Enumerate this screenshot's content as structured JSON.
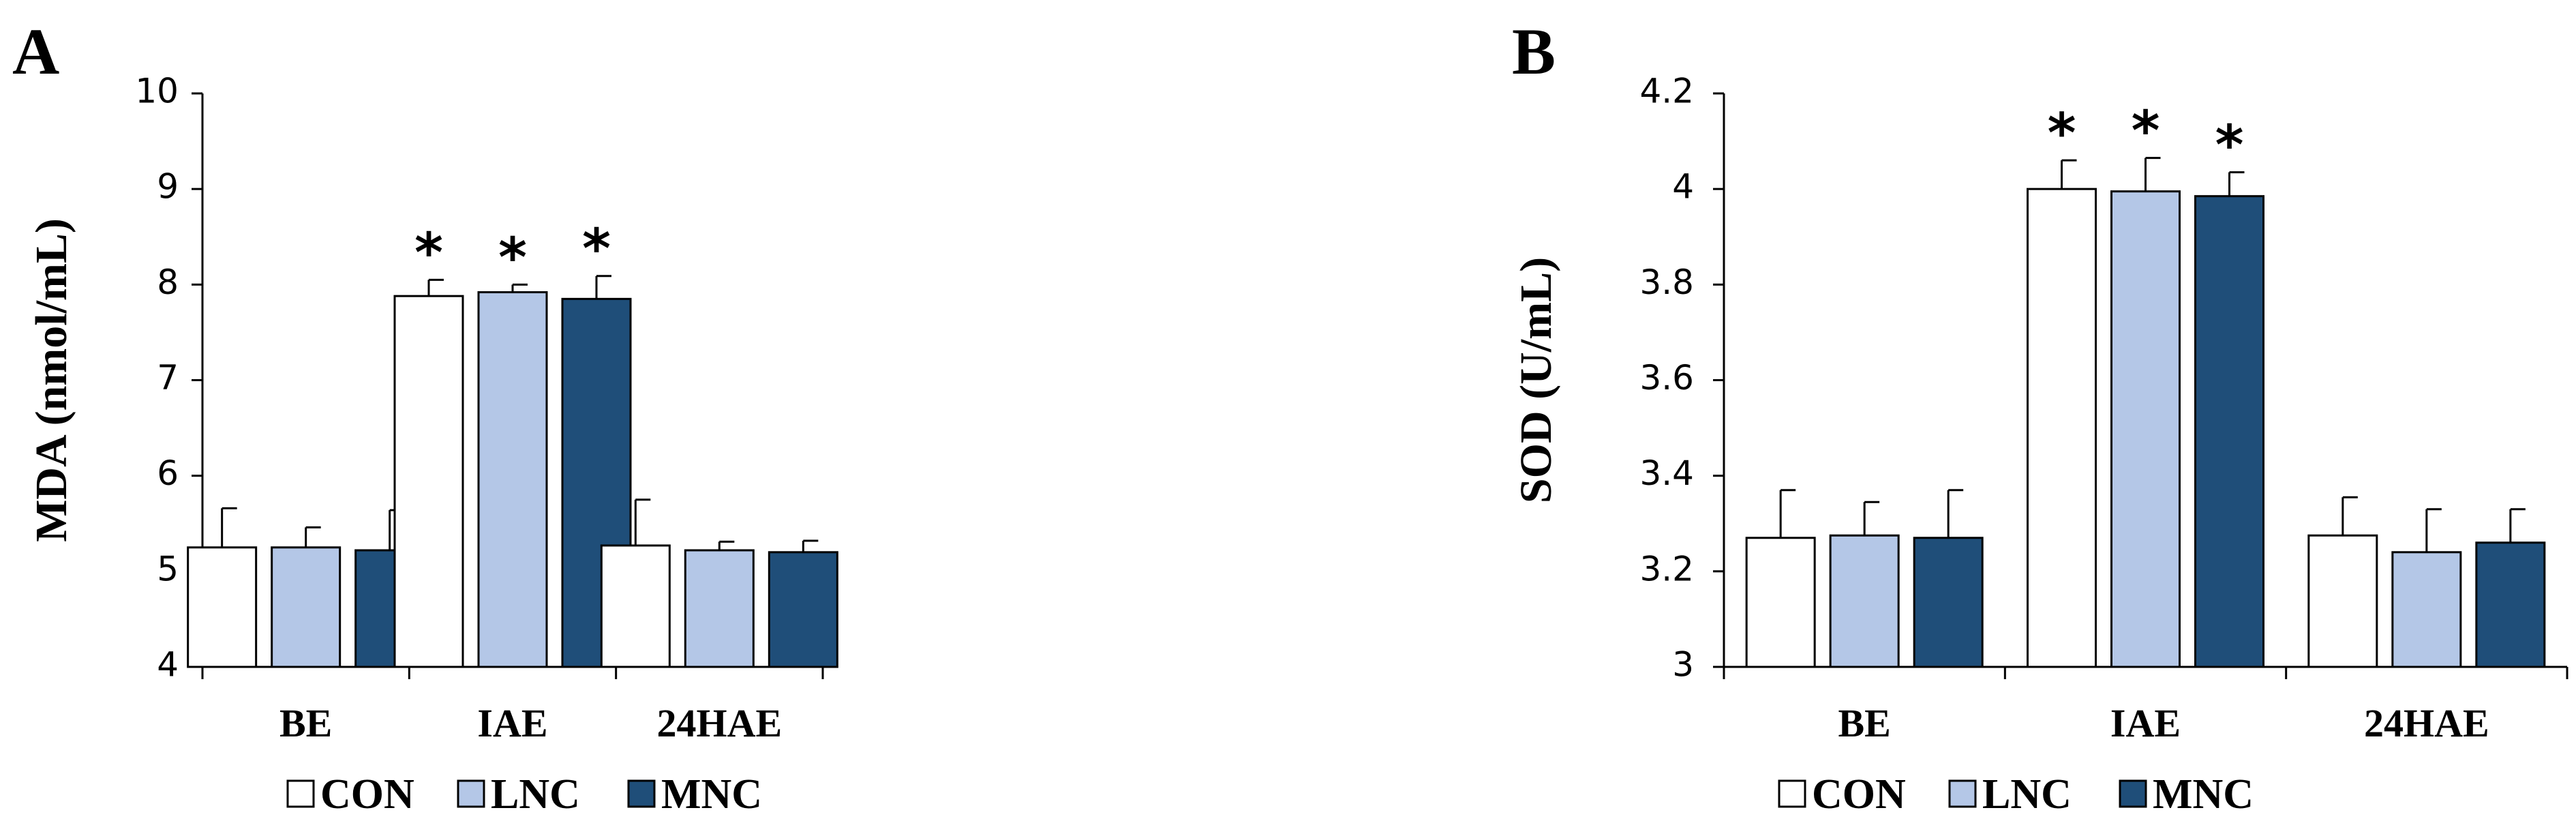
{
  "series_colors": {
    "CON": "#ffffff",
    "LNC": "#b4c7e7",
    "MNC": "#1f4e79"
  },
  "chart_data": [
    {
      "type": "bar",
      "panel_label": "A",
      "ylabel": "MDA (nmol/mL)",
      "categories": [
        "BE",
        "IAE",
        "24HAE"
      ],
      "ylim": [
        4,
        10
      ],
      "yticks": [
        4,
        5,
        6,
        7,
        8,
        9,
        10
      ],
      "ytick_labels": [
        "4",
        "5",
        "6",
        "7",
        "8",
        "9",
        "10"
      ],
      "legend": [
        "CON",
        "LNC",
        "MNC"
      ],
      "legend_position": "bottom",
      "grid": false,
      "series": [
        {
          "name": "CON",
          "values": [
            5.25,
            7.88,
            5.27
          ],
          "errors": [
            0.41,
            0.17,
            0.48
          ],
          "significance": [
            "",
            "*",
            ""
          ]
        },
        {
          "name": "LNC",
          "values": [
            5.25,
            7.92,
            5.22
          ],
          "errors": [
            0.21,
            0.08,
            0.09
          ],
          "significance": [
            "",
            "*",
            ""
          ]
        },
        {
          "name": "MNC",
          "values": [
            5.22,
            7.85,
            5.2
          ],
          "errors": [
            0.42,
            0.24,
            0.12
          ],
          "significance": [
            "",
            "*",
            ""
          ]
        }
      ]
    },
    {
      "type": "bar",
      "panel_label": "B",
      "ylabel": "SOD (U/mL)",
      "categories": [
        "BE",
        "IAE",
        "24HAE"
      ],
      "ylim": [
        3,
        4.2
      ],
      "yticks": [
        3,
        3.2,
        3.4,
        3.6,
        3.8,
        4,
        4.2
      ],
      "ytick_labels": [
        "3",
        "3.2",
        "3.4",
        "3.6",
        "3.8",
        "4",
        "4.2"
      ],
      "legend": [
        "CON",
        "LNC",
        "MNC"
      ],
      "legend_position": "bottom",
      "grid": false,
      "series": [
        {
          "name": "CON",
          "values": [
            3.27,
            4.0,
            3.275
          ],
          "errors": [
            0.1,
            0.06,
            0.08
          ],
          "significance": [
            "",
            "*",
            ""
          ]
        },
        {
          "name": "LNC",
          "values": [
            3.275,
            3.995,
            3.24
          ],
          "errors": [
            0.07,
            0.07,
            0.09
          ],
          "significance": [
            "",
            "*",
            ""
          ]
        },
        {
          "name": "MNC",
          "values": [
            3.27,
            3.985,
            3.26
          ],
          "errors": [
            0.1,
            0.05,
            0.07
          ],
          "significance": [
            "",
            "*",
            ""
          ]
        }
      ]
    }
  ]
}
